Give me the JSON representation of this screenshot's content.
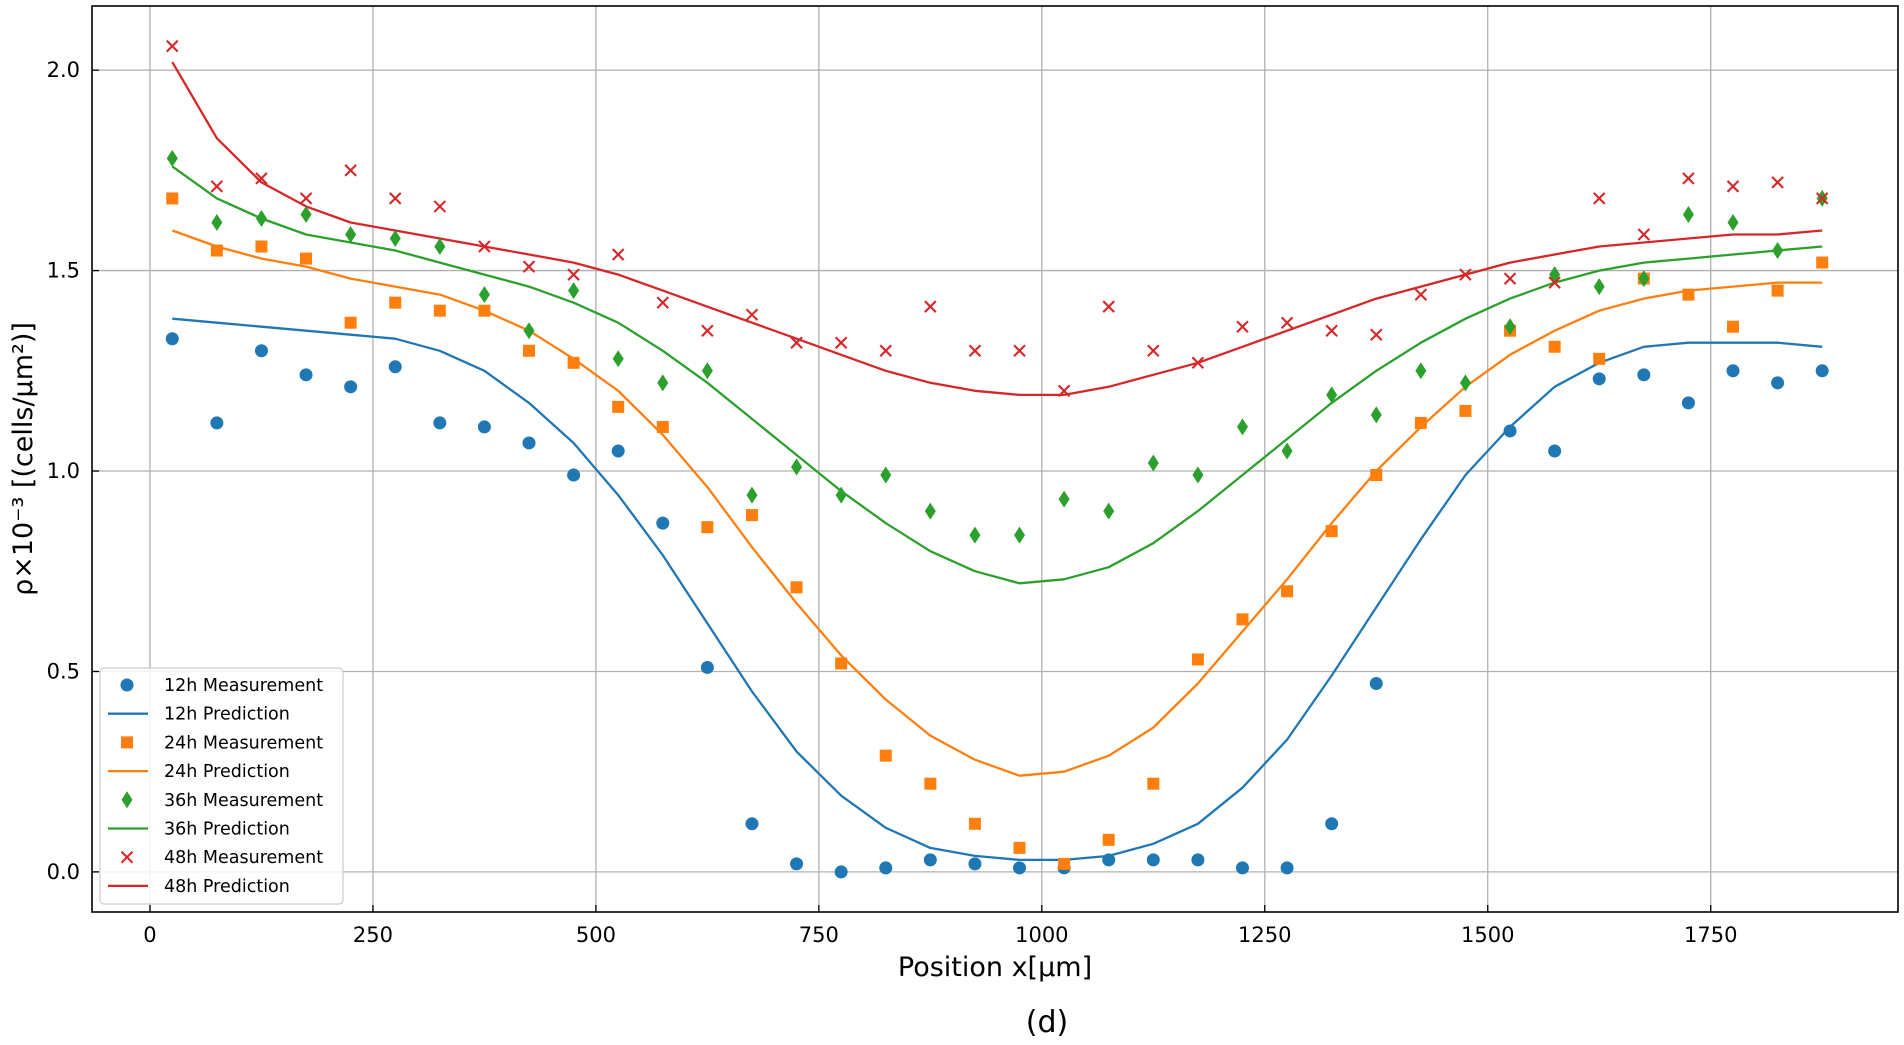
{
  "chart_data": {
    "type": "scatter",
    "title": "",
    "caption": "(d)",
    "xlabel": "Position x[μm]",
    "ylabel": "ρ×10⁻³ [(cells/μm²)]",
    "xlim": [
      -65,
      1960
    ],
    "ylim": [
      -0.1,
      2.16
    ],
    "xticks": [
      0,
      250,
      500,
      750,
      1000,
      1250,
      1500,
      1750
    ],
    "xtick_labels": [
      "0",
      "250",
      "500",
      "750",
      "1000",
      "1250",
      "1500",
      "1750"
    ],
    "yticks": [
      0.0,
      0.5,
      1.0,
      1.5,
      2.0
    ],
    "ytick_labels": [
      "0.0",
      "0.5",
      "1.0",
      "1.5",
      "2.0"
    ],
    "grid": true,
    "legend_position": "lower-left",
    "x": [
      25,
      75,
      125,
      175,
      225,
      275,
      325,
      375,
      425,
      475,
      525,
      575,
      625,
      675,
      725,
      775,
      825,
      875,
      925,
      975,
      1025,
      1075,
      1125,
      1175,
      1225,
      1275,
      1325,
      1375,
      1425,
      1475,
      1525,
      1575,
      1625,
      1675,
      1725,
      1775,
      1825,
      1875
    ],
    "series": [
      {
        "name": "12h",
        "measurement_label": "12h Measurement",
        "prediction_label": "12h Prediction",
        "color": "#1f77b4",
        "marker": "circle",
        "measurement": [
          1.33,
          1.12,
          1.3,
          1.24,
          1.21,
          1.26,
          1.12,
          1.11,
          1.07,
          0.99,
          1.05,
          0.87,
          0.51,
          0.12,
          0.02,
          0.0,
          0.01,
          0.03,
          0.02,
          0.01,
          0.01,
          0.03,
          0.03,
          0.03,
          0.01,
          0.01,
          0.12,
          0.47,
          null,
          null,
          1.1,
          1.05,
          1.23,
          1.24,
          1.17,
          1.25,
          1.22,
          1.25
        ],
        "prediction": [
          1.38,
          1.37,
          1.36,
          1.35,
          1.34,
          1.33,
          1.3,
          1.25,
          1.17,
          1.07,
          0.94,
          0.79,
          0.62,
          0.45,
          0.3,
          0.19,
          0.11,
          0.06,
          0.04,
          0.03,
          0.03,
          0.04,
          0.07,
          0.12,
          0.21,
          0.33,
          0.49,
          0.66,
          0.83,
          0.99,
          1.11,
          1.21,
          1.27,
          1.31,
          1.32,
          1.32,
          1.32,
          1.31
        ]
      },
      {
        "name": "24h",
        "measurement_label": "24h Measurement",
        "prediction_label": "24h Prediction",
        "color": "#ff7f0e",
        "marker": "square",
        "measurement": [
          1.68,
          1.55,
          1.56,
          1.53,
          1.37,
          1.42,
          1.4,
          1.4,
          1.3,
          1.27,
          1.16,
          1.11,
          0.86,
          0.89,
          0.71,
          0.52,
          0.29,
          0.22,
          0.12,
          0.06,
          0.02,
          0.08,
          0.22,
          0.53,
          0.63,
          0.7,
          0.85,
          0.99,
          1.12,
          1.15,
          1.35,
          1.31,
          1.28,
          1.48,
          1.44,
          1.36,
          1.45,
          1.52
        ],
        "prediction": [
          1.6,
          1.56,
          1.53,
          1.51,
          1.48,
          1.46,
          1.44,
          1.4,
          1.35,
          1.28,
          1.2,
          1.09,
          0.96,
          0.81,
          0.67,
          0.54,
          0.43,
          0.34,
          0.28,
          0.24,
          0.25,
          0.29,
          0.36,
          0.47,
          0.6,
          0.73,
          0.87,
          1.0,
          1.11,
          1.21,
          1.29,
          1.35,
          1.4,
          1.43,
          1.45,
          1.46,
          1.47,
          1.47
        ]
      },
      {
        "name": "36h",
        "measurement_label": "36h Measurement",
        "prediction_label": "36h Prediction",
        "color": "#2ca02c",
        "marker": "diamond",
        "measurement": [
          1.78,
          1.62,
          1.63,
          1.64,
          1.59,
          1.58,
          1.56,
          1.44,
          1.35,
          1.45,
          1.28,
          1.22,
          1.25,
          0.94,
          1.01,
          0.94,
          0.99,
          0.9,
          0.84,
          0.84,
          0.93,
          0.9,
          1.02,
          0.99,
          1.11,
          1.05,
          1.19,
          1.14,
          1.25,
          1.22,
          1.36,
          1.49,
          1.46,
          1.48,
          1.64,
          1.62,
          1.55,
          1.68
        ],
        "prediction": [
          1.76,
          1.68,
          1.63,
          1.59,
          1.57,
          1.55,
          1.52,
          1.49,
          1.46,
          1.42,
          1.37,
          1.3,
          1.22,
          1.13,
          1.04,
          0.95,
          0.87,
          0.8,
          0.75,
          0.72,
          0.73,
          0.76,
          0.82,
          0.9,
          0.99,
          1.08,
          1.17,
          1.25,
          1.32,
          1.38,
          1.43,
          1.47,
          1.5,
          1.52,
          1.53,
          1.54,
          1.55,
          1.56
        ]
      },
      {
        "name": "48h",
        "measurement_label": "48h Measurement",
        "prediction_label": "48h Prediction",
        "color": "#d62728",
        "marker": "x",
        "measurement": [
          2.06,
          1.71,
          1.73,
          1.68,
          1.75,
          1.68,
          1.66,
          1.56,
          1.51,
          1.49,
          1.54,
          1.42,
          1.35,
          1.39,
          1.32,
          1.32,
          1.3,
          1.41,
          1.3,
          1.3,
          1.2,
          1.41,
          1.3,
          1.27,
          1.36,
          1.37,
          1.35,
          1.34,
          1.44,
          1.49,
          1.48,
          1.47,
          1.68,
          1.59,
          1.73,
          1.71,
          1.72,
          1.68
        ],
        "prediction": [
          2.02,
          1.83,
          1.72,
          1.66,
          1.62,
          1.6,
          1.58,
          1.56,
          1.54,
          1.52,
          1.49,
          1.45,
          1.41,
          1.37,
          1.33,
          1.29,
          1.25,
          1.22,
          1.2,
          1.19,
          1.19,
          1.21,
          1.24,
          1.27,
          1.31,
          1.35,
          1.39,
          1.43,
          1.46,
          1.49,
          1.52,
          1.54,
          1.56,
          1.57,
          1.58,
          1.59,
          1.59,
          1.6
        ]
      }
    ]
  }
}
